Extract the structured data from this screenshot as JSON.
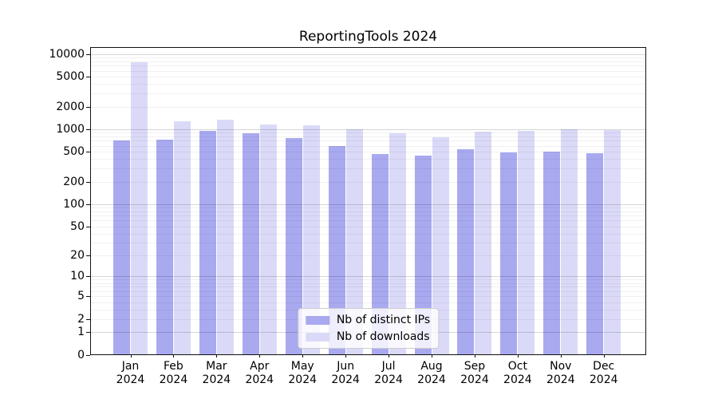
{
  "chart_data": {
    "type": "bar",
    "title": "ReportingTools 2024",
    "categories": [
      "Jan 2024",
      "Feb 2024",
      "Mar 2024",
      "Apr 2024",
      "May 2024",
      "Jun 2024",
      "Jul 2024",
      "Aug 2024",
      "Sep 2024",
      "Oct 2024",
      "Nov 2024",
      "Dec 2024"
    ],
    "series": [
      {
        "name": "Nb of distinct IPs",
        "color": "#a9a9f0",
        "values": [
          720,
          735,
          960,
          900,
          770,
          610,
          475,
          450,
          545,
          500,
          508,
          488
        ]
      },
      {
        "name": "Nb of downloads",
        "color": "#dadaf8",
        "values": [
          7900,
          1290,
          1360,
          1165,
          1150,
          1015,
          885,
          795,
          940,
          960,
          1020,
          975
        ]
      }
    ],
    "xlabel": "",
    "ylabel": "",
    "yscale": "log1p",
    "ylim": [
      0,
      12370
    ],
    "y_ticks": [
      0,
      1,
      2,
      5,
      10,
      20,
      50,
      100,
      200,
      500,
      1000,
      2000,
      5000,
      10000
    ],
    "grid": "major+minor",
    "legend_position": "lower center",
    "colors": {
      "axis": "#111111",
      "grid_major": "rgba(0,0,0,0.16)",
      "grid_minor": "rgba(0,0,0,0.055)",
      "text": "#000000"
    }
  }
}
